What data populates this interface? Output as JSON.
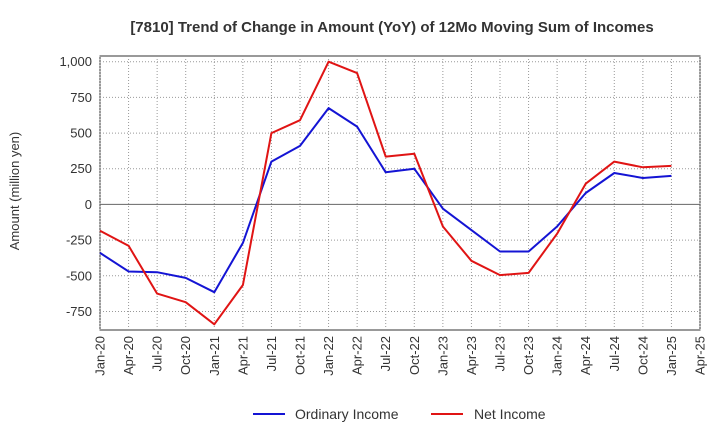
{
  "chart_data": {
    "type": "line",
    "title": "[7810]  Trend of Change in Amount (YoY) of 12Mo Moving Sum of Incomes",
    "xlabel": "",
    "ylabel": "Amount (million yen)",
    "x": [
      "Jan-20",
      "Apr-20",
      "Jul-20",
      "Oct-20",
      "Jan-21",
      "Apr-21",
      "Jul-21",
      "Oct-21",
      "Jan-22",
      "Apr-22",
      "Jul-22",
      "Oct-22",
      "Jan-23",
      "Apr-23",
      "Jul-23",
      "Oct-23",
      "Jan-24",
      "Apr-24",
      "Jul-24",
      "Oct-24",
      "Jan-25"
    ],
    "x_ticks": [
      "Jan-20",
      "Apr-20",
      "Jul-20",
      "Oct-20",
      "Jan-21",
      "Apr-21",
      "Jul-21",
      "Oct-21",
      "Jan-22",
      "Apr-22",
      "Jul-22",
      "Oct-22",
      "Jan-23",
      "Apr-23",
      "Jul-23",
      "Oct-23",
      "Jan-24",
      "Apr-24",
      "Jul-24",
      "Oct-24",
      "Jan-25",
      "Apr-25"
    ],
    "y_ticks": [
      1000,
      750,
      500,
      250,
      0,
      -250,
      -500,
      -750
    ],
    "y_tick_labels": [
      "1,000",
      "750",
      "500",
      "250",
      "0",
      "-250",
      "-500",
      "-750"
    ],
    "ylim": [
      -880,
      1040
    ],
    "grid": true,
    "legend_position": "bottom-center",
    "series": [
      {
        "name": "Ordinary Income",
        "color": "#1414d4",
        "values": [
          -340,
          -470,
          -475,
          -515,
          -615,
          -270,
          300,
          410,
          675,
          545,
          225,
          250,
          -30,
          -180,
          -330,
          -330,
          -155,
          80,
          220,
          185,
          200
        ]
      },
      {
        "name": "Net Income",
        "color": "#e01414",
        "values": [
          -185,
          -290,
          -625,
          -685,
          -840,
          -565,
          500,
          590,
          1000,
          920,
          335,
          355,
          -155,
          -395,
          -495,
          -480,
          -205,
          145,
          300,
          260,
          270
        ]
      }
    ]
  }
}
